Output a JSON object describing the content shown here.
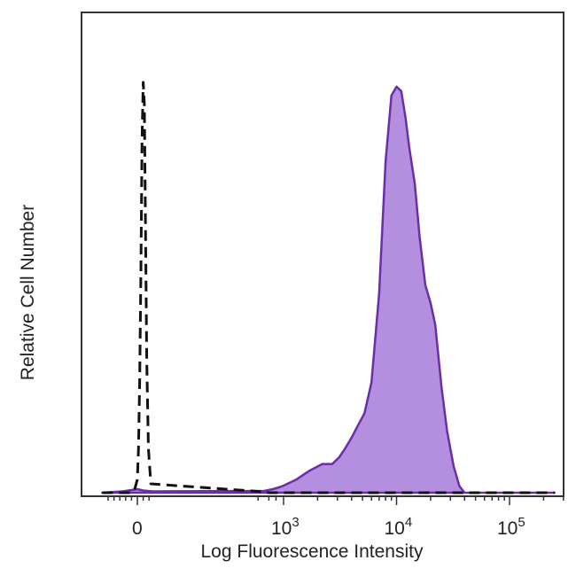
{
  "chart_data": {
    "type": "area",
    "title": "",
    "xlabel": "Log Fluorescence Intensity",
    "ylabel": "Relative Cell Number",
    "x_scale": "biexponential",
    "xlim": [
      -600,
      250000
    ],
    "ylim": [
      0,
      100
    ],
    "grid": false,
    "legend": "none",
    "x_ticks": [
      {
        "value": 0,
        "base": "0",
        "exp": ""
      },
      {
        "value": 1000,
        "base": "10",
        "exp": "3"
      },
      {
        "value": 10000,
        "base": "10",
        "exp": "4"
      },
      {
        "value": 100000,
        "base": "10",
        "exp": "5"
      }
    ],
    "series": [
      {
        "style": "filled",
        "color": "#6a2fa8",
        "fill": "#b48fe0",
        "x": [
          -600,
          -250,
          0,
          100,
          250,
          400,
          600,
          800,
          1000,
          1300,
          1700,
          2200,
          2700,
          3100,
          3500,
          4000,
          4500,
          5200,
          6000,
          7000,
          8000,
          9000,
          10000,
          11000,
          12000,
          13000,
          14500,
          16000,
          18000,
          20000,
          22000,
          25000,
          28000,
          32000,
          36000,
          40000,
          50000,
          70000,
          100000,
          150000,
          250000
        ],
        "y": [
          0,
          0.3,
          0.8,
          0.5,
          0.3,
          0.4,
          0.8,
          1.2,
          1.6,
          3,
          5,
          6.5,
          6.5,
          8,
          10,
          12.5,
          15,
          18,
          25,
          45,
          75,
          90,
          92,
          91,
          85,
          78,
          70,
          58,
          47,
          43,
          38,
          24,
          14,
          6,
          1.5,
          0,
          0,
          0,
          0,
          0,
          0
        ]
      },
      {
        "style": "dashed",
        "color": "#111111",
        "x": [
          -600,
          -100,
          -50,
          0,
          20,
          40,
          60,
          80,
          100,
          120,
          140,
          160,
          190,
          230,
          300,
          500,
          1000,
          3000,
          10000,
          100000,
          250000
        ],
        "y": [
          0,
          0,
          0.6,
          3,
          10,
          25,
          50,
          80,
          93,
          88,
          60,
          30,
          10,
          2,
          0.3,
          0,
          0,
          0,
          0,
          0,
          0
        ]
      }
    ]
  }
}
